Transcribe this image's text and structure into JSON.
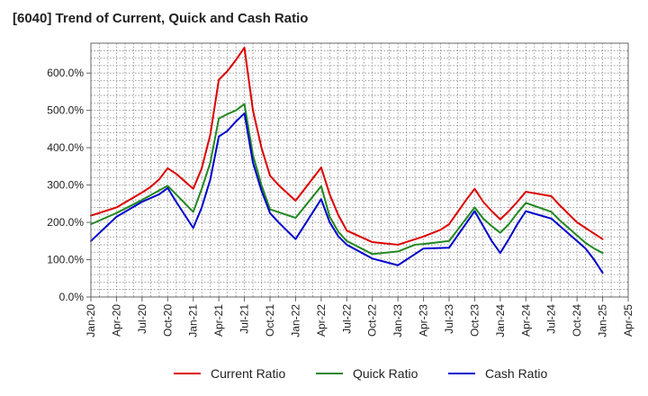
{
  "chart_data": {
    "type": "line",
    "title": "[6040]  Trend of Current, Quick and Cash Ratio",
    "xlabel": "",
    "ylabel": "",
    "ylim": [
      0,
      680
    ],
    "y_ticks": [
      0,
      100,
      200,
      300,
      400,
      500,
      600
    ],
    "y_tick_labels": [
      "0.0%",
      "100.0%",
      "200.0%",
      "300.0%",
      "400.0%",
      "500.0%",
      "600.0%"
    ],
    "x_range": [
      0,
      63
    ],
    "x_ticks": [
      0,
      3,
      6,
      9,
      12,
      15,
      18,
      21,
      24,
      27,
      30,
      33,
      36,
      39,
      42,
      45,
      48,
      51,
      54,
      57,
      60,
      63
    ],
    "x_tick_labels": [
      "Jan-20",
      "Apr-20",
      "Jul-20",
      "Oct-20",
      "Jan-21",
      "Apr-21",
      "Jul-21",
      "Oct-21",
      "Jan-22",
      "Apr-22",
      "Jul-22",
      "Oct-22",
      "Jan-23",
      "Apr-23",
      "Jul-23",
      "Oct-23",
      "Jan-24",
      "Apr-24",
      "Jul-24",
      "Oct-24",
      "Jan-25",
      "Apr-25"
    ],
    "grid": true,
    "legend_position": "bottom",
    "series": [
      {
        "name": "Current Ratio",
        "color": "#dd0000",
        "x": [
          0,
          3,
          6,
          7,
          8,
          9,
          10,
          11,
          12,
          13,
          14,
          15,
          16,
          17,
          18,
          19,
          20,
          21,
          22,
          24,
          27,
          28,
          29,
          30,
          33,
          36,
          39,
          41,
          42,
          44,
          45,
          46,
          47,
          48,
          49,
          50,
          51,
          54,
          55,
          57,
          60
        ],
        "values": [
          218,
          240,
          280,
          295,
          315,
          345,
          330,
          310,
          290,
          345,
          435,
          582,
          605,
          635,
          668,
          500,
          400,
          325,
          300,
          258,
          347,
          275,
          220,
          178,
          147,
          140,
          162,
          180,
          195,
          260,
          290,
          255,
          230,
          208,
          230,
          255,
          282,
          270,
          245,
          200,
          155
        ]
      },
      {
        "name": "Quick Ratio",
        "color": "#228822",
        "x": [
          0,
          3,
          6,
          9,
          12,
          13,
          14,
          15,
          16,
          17,
          18,
          19,
          20,
          21,
          24,
          27,
          28,
          29,
          30,
          33,
          36,
          38,
          39,
          42,
          45,
          46,
          47,
          48,
          49,
          50,
          51,
          54,
          55,
          57,
          58,
          59,
          60
        ],
        "values": [
          195,
          225,
          260,
          298,
          228,
          290,
          360,
          478,
          490,
          500,
          517,
          380,
          300,
          235,
          212,
          297,
          215,
          175,
          150,
          115,
          122,
          140,
          142,
          150,
          240,
          210,
          190,
          172,
          195,
          225,
          252,
          228,
          205,
          165,
          145,
          130,
          118
        ]
      },
      {
        "name": "Cash Ratio",
        "color": "#0000cc",
        "x": [
          0,
          3,
          6,
          8,
          9,
          10,
          11,
          12,
          13,
          14,
          15,
          16,
          17,
          18,
          19,
          20,
          21,
          22,
          24,
          27,
          28,
          29,
          30,
          33,
          36,
          38,
          39,
          42,
          45,
          46,
          47,
          48,
          49,
          50,
          51,
          54,
          55,
          57,
          58,
          59,
          60
        ],
        "values": [
          150,
          215,
          255,
          275,
          292,
          255,
          220,
          185,
          240,
          315,
          430,
          445,
          470,
          492,
          360,
          285,
          225,
          200,
          155,
          262,
          200,
          163,
          140,
          103,
          85,
          115,
          130,
          132,
          230,
          190,
          150,
          118,
          155,
          195,
          230,
          210,
          190,
          150,
          130,
          100,
          65
        ]
      }
    ]
  }
}
